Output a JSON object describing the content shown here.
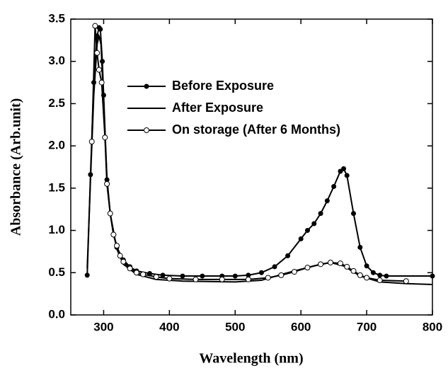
{
  "chart_data": {
    "type": "line",
    "xlabel": "Wavelength (nm)",
    "ylabel": "Absorbance (Arb.unit)",
    "xlim": [
      250,
      800
    ],
    "xticks": [
      300,
      400,
      500,
      600,
      700,
      800
    ],
    "ylim": [
      0,
      3.5
    ],
    "yticks": [
      {
        "value": 0,
        "label": "0.0"
      },
      0.5,
      {
        "value": 1,
        "label": "1.0"
      },
      1.5,
      {
        "value": 2,
        "label": "2.0"
      },
      2.5,
      {
        "value": 3,
        "label": "3.0"
      },
      3.5
    ],
    "series": [
      {
        "name": "Before Exposure",
        "color": "#000000",
        "marker": "filled",
        "x": [
          275,
          280,
          285,
          290,
          293,
          295,
          298,
          300,
          305,
          310,
          315,
          320,
          330,
          340,
          350,
          370,
          390,
          420,
          450,
          480,
          500,
          520,
          540,
          560,
          580,
          600,
          610,
          620,
          630,
          640,
          650,
          660,
          665,
          670,
          680,
          690,
          700,
          710,
          720,
          730,
          800
        ],
        "values": [
          0.47,
          1.66,
          2.75,
          3.3,
          3.4,
          3.38,
          3.0,
          2.6,
          1.6,
          1.2,
          0.95,
          0.8,
          0.65,
          0.57,
          0.52,
          0.49,
          0.47,
          0.46,
          0.46,
          0.46,
          0.46,
          0.47,
          0.5,
          0.57,
          0.7,
          0.9,
          1.0,
          1.08,
          1.2,
          1.35,
          1.52,
          1.7,
          1.73,
          1.65,
          1.2,
          0.8,
          0.58,
          0.5,
          0.47,
          0.46,
          0.46
        ]
      },
      {
        "name": "After Exposure",
        "color": "#000000",
        "marker": "none",
        "x": [
          275,
          280,
          285,
          290,
          293,
          296,
          300,
          305,
          310,
          320,
          330,
          350,
          380,
          420,
          500,
          540,
          580,
          620,
          645,
          665,
          690,
          720,
          760,
          800
        ],
        "values": [
          0.55,
          1.6,
          2.6,
          3.2,
          3.3,
          3.2,
          2.5,
          1.62,
          1.2,
          0.78,
          0.6,
          0.48,
          0.42,
          0.4,
          0.39,
          0.41,
          0.5,
          0.58,
          0.62,
          0.58,
          0.46,
          0.39,
          0.37,
          0.36
        ]
      },
      {
        "name": "On storage (After 6 Months)",
        "color": "#000000",
        "marker": "open",
        "x": [
          282,
          287,
          290,
          293,
          297,
          302,
          305,
          310,
          315,
          320,
          325,
          330,
          340,
          350,
          360,
          380,
          400,
          440,
          480,
          520,
          550,
          570,
          590,
          610,
          630,
          645,
          660,
          670,
          680,
          690,
          700,
          720,
          760
        ],
        "values": [
          2.05,
          3.42,
          3.1,
          2.9,
          2.75,
          2.1,
          1.55,
          1.2,
          0.95,
          0.82,
          0.7,
          0.63,
          0.55,
          0.5,
          0.48,
          0.45,
          0.43,
          0.42,
          0.42,
          0.42,
          0.44,
          0.47,
          0.51,
          0.56,
          0.6,
          0.62,
          0.61,
          0.57,
          0.52,
          0.47,
          0.44,
          0.41,
          0.4
        ]
      }
    ]
  }
}
